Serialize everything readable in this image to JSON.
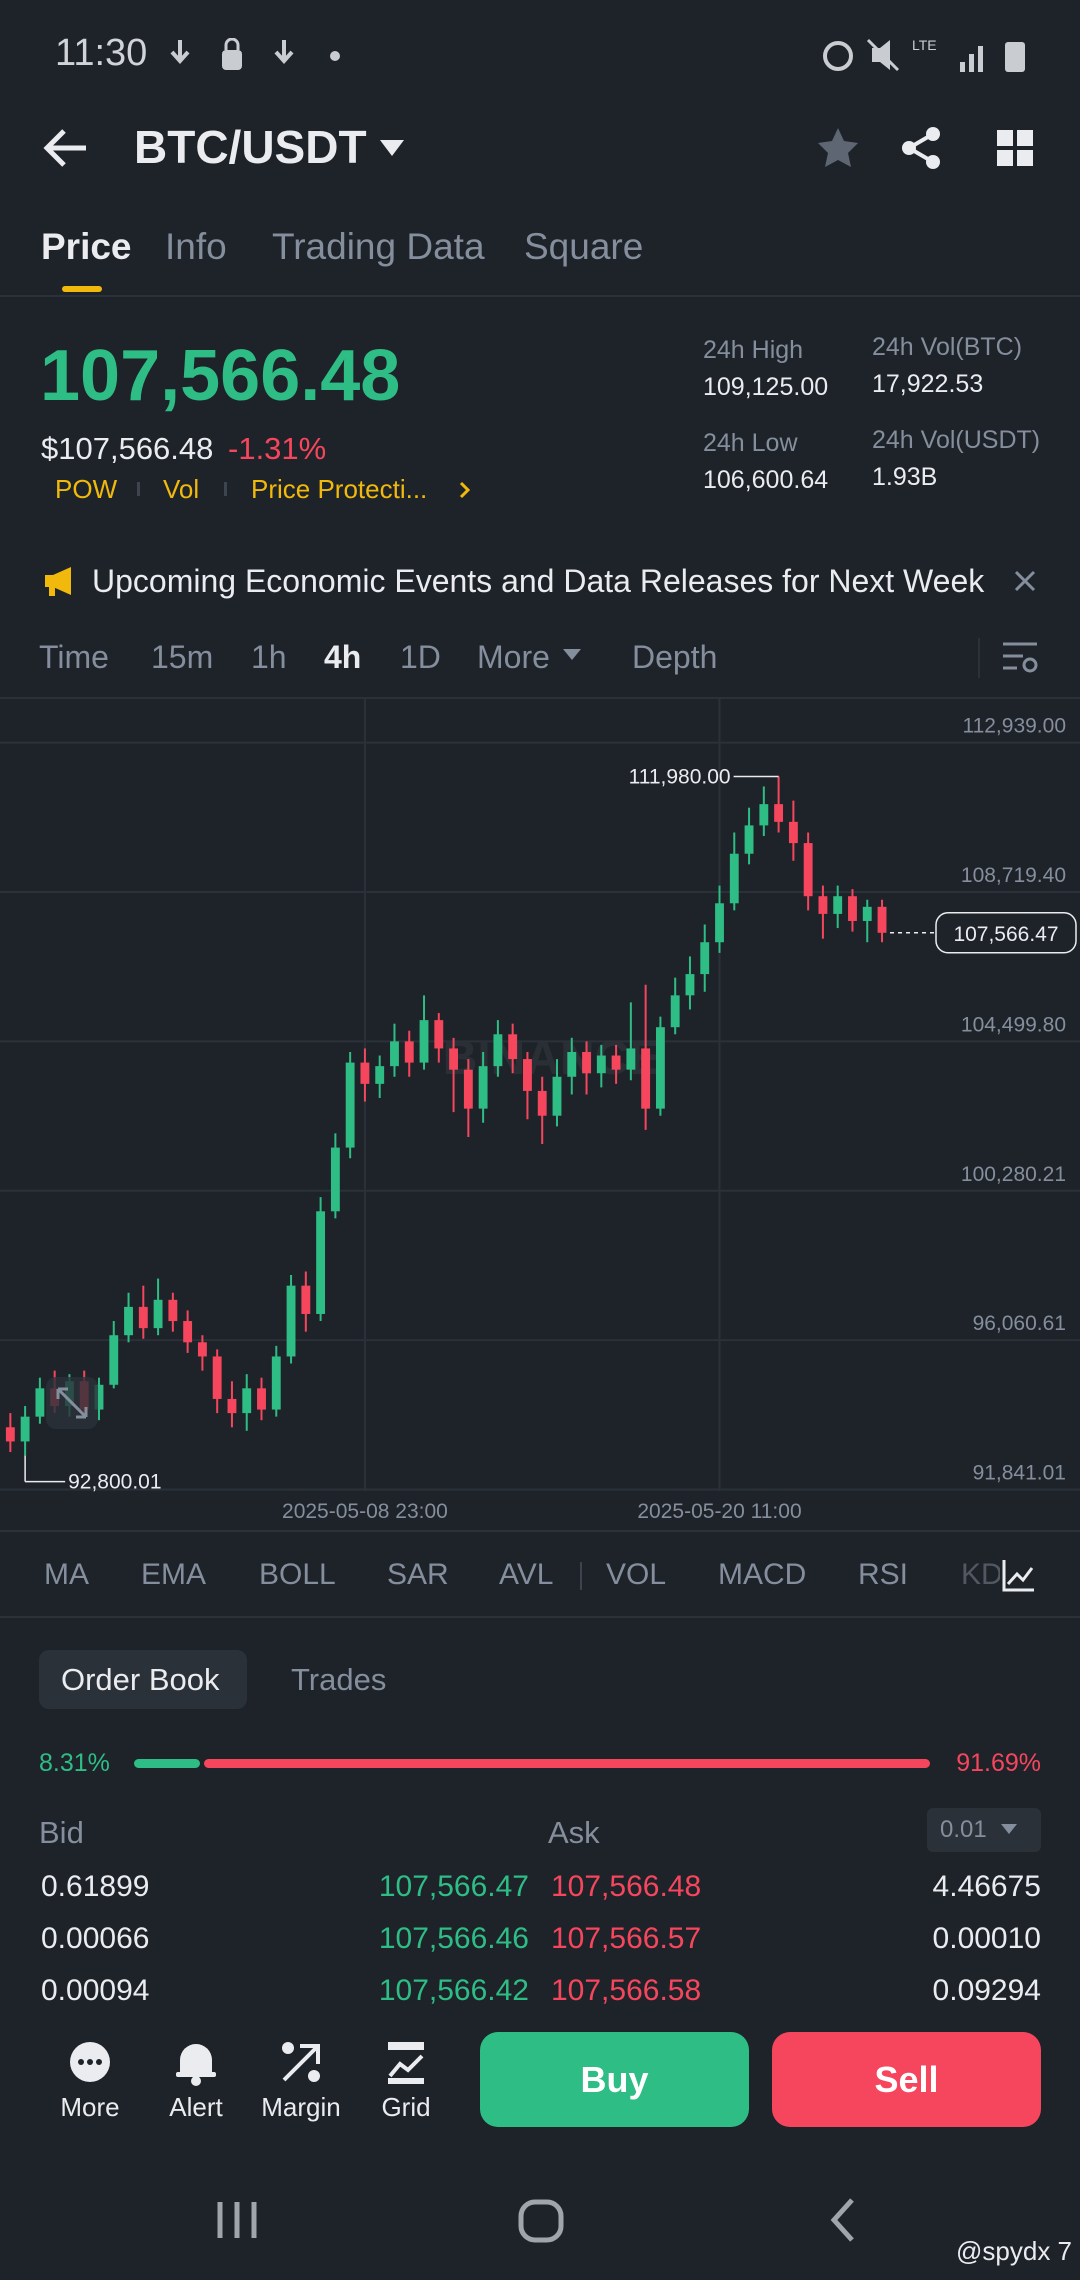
{
  "status_bar": {
    "time": "11:30"
  },
  "header": {
    "title": "BTC/USDT"
  },
  "tabs": [
    "Price",
    "Info",
    "Trading Data",
    "Square"
  ],
  "ticker": {
    "price": "107,566.48",
    "fiat_price": "$107,566.48",
    "change": "-1.31%",
    "tags": [
      "POW",
      "Vol",
      "Price Protecti..."
    ],
    "stats": [
      {
        "label": "24h High",
        "value": "109,125.00"
      },
      {
        "label": "24h Vol(BTC)",
        "value": "17,922.53"
      },
      {
        "label": "24h Low",
        "value": "106,600.64"
      },
      {
        "label": "24h Vol(USDT)",
        "value": "1.93B"
      }
    ]
  },
  "banner": {
    "text": "Upcoming Economic Events and Data Releases for Next Week"
  },
  "intervals": [
    "Time",
    "15m",
    "1h",
    "4h",
    "1D",
    "More",
    "Depth"
  ],
  "chart_data": {
    "type": "candlestick",
    "up_color": "#2ebd85",
    "down_color": "#f6465d",
    "grid": true,
    "watermark": "BINANCE",
    "candles": [
      [
        93600,
        94000,
        92900,
        93200
      ],
      [
        93200,
        94200,
        92800.01,
        93900
      ],
      [
        93900,
        95000,
        93700,
        94700
      ],
      [
        94700,
        95200,
        94000,
        94200
      ],
      [
        94200,
        95100,
        93900,
        94900
      ],
      [
        94900,
        95200,
        93900,
        94100
      ],
      [
        94100,
        95000,
        93800,
        94800
      ],
      [
        94800,
        96600,
        94700,
        96200
      ],
      [
        96200,
        97400,
        96000,
        97000
      ],
      [
        97000,
        97600,
        96100,
        96400
      ],
      [
        96400,
        97800,
        96200,
        97200
      ],
      [
        97200,
        97400,
        96300,
        96600
      ],
      [
        96600,
        96900,
        95700,
        96000
      ],
      [
        96000,
        96200,
        95200,
        95600
      ],
      [
        95600,
        95800,
        94000,
        94400
      ],
      [
        94400,
        94900,
        93600,
        94000
      ],
      [
        94000,
        95100,
        93500,
        94700
      ],
      [
        94700,
        95000,
        93800,
        94100
      ],
      [
        94100,
        95900,
        93900,
        95600
      ],
      [
        95600,
        97900,
        95400,
        97600
      ],
      [
        97600,
        98000,
        96300,
        96800
      ],
      [
        96800,
        100100,
        96600,
        99700
      ],
      [
        99700,
        101900,
        99500,
        101500
      ],
      [
        101500,
        104200,
        101200,
        103900
      ],
      [
        103900,
        104300,
        102800,
        103300
      ],
      [
        103300,
        104100,
        102900,
        103800
      ],
      [
        103800,
        105000,
        103500,
        104500
      ],
      [
        104500,
        104800,
        103500,
        103900
      ],
      [
        103900,
        105800,
        103700,
        105100
      ],
      [
        105100,
        105300,
        103900,
        104300
      ],
      [
        104300,
        104600,
        102500,
        103700
      ],
      [
        103700,
        104000,
        101800,
        102600
      ],
      [
        102600,
        104200,
        102200,
        103800
      ],
      [
        103800,
        105100,
        103500,
        104700
      ],
      [
        104700,
        105000,
        103600,
        104000
      ],
      [
        104000,
        104200,
        102300,
        103100
      ],
      [
        103100,
        103500,
        101600,
        102400
      ],
      [
        102400,
        104000,
        102100,
        103500
      ],
      [
        103500,
        104600,
        103000,
        104200
      ],
      [
        104200,
        104500,
        103000,
        103600
      ],
      [
        103600,
        104400,
        103200,
        104100
      ],
      [
        104100,
        104400,
        103300,
        103700
      ],
      [
        103700,
        105600,
        103400,
        104300
      ],
      [
        104300,
        106100,
        102000,
        102600
      ],
      [
        102600,
        105200,
        102400,
        104900
      ],
      [
        104900,
        106300,
        104700,
        105800
      ],
      [
        105800,
        106900,
        105400,
        106400
      ],
      [
        106400,
        107800,
        105900,
        107300
      ],
      [
        107300,
        108900,
        107000,
        108400
      ],
      [
        108400,
        110400,
        108200,
        109800
      ],
      [
        109800,
        111100,
        109500,
        110600
      ],
      [
        110600,
        111700,
        110300,
        111200
      ],
      [
        111200,
        111980,
        110400,
        110700
      ],
      [
        110700,
        111300,
        109600,
        110100
      ],
      [
        110100,
        110400,
        108200,
        108600
      ],
      [
        108600,
        108900,
        107400,
        108100
      ],
      [
        108100,
        108900,
        107700,
        108600
      ],
      [
        108600,
        108800,
        107600,
        107900
      ],
      [
        107900,
        108500,
        107300,
        108300
      ],
      [
        108300,
        108500,
        107300,
        107566.47
      ]
    ],
    "ylim": [
      91800,
      114170
    ],
    "yticks": [
      {
        "value": 112939,
        "label": "112,939.00"
      },
      {
        "value": 108719.4,
        "label": "108,719.40"
      },
      {
        "value": 104499.8,
        "label": "104,499.80"
      },
      {
        "value": 100280.21,
        "label": "100,280.21"
      },
      {
        "value": 96060.61,
        "label": "96,060.61"
      },
      {
        "value": 91841.01,
        "label": "91,841.01"
      }
    ],
    "xlim": [
      -0.7,
      72.4
    ],
    "xticks": [
      {
        "value": 24,
        "label": "2025-05-08 23:00"
      },
      {
        "value": 48,
        "label": "2025-05-20 11:00"
      }
    ],
    "annotations": [
      {
        "value": 111980,
        "label": "111,980.00"
      },
      {
        "value": 92800.01,
        "label": "92,800.01"
      }
    ],
    "last_price": {
      "value": 107566.47,
      "label": "107,566.47"
    }
  },
  "indicators": [
    "MA",
    "EMA",
    "BOLL",
    "SAR",
    "AVL",
    "VOL",
    "MACD",
    "RSI",
    "KD"
  ],
  "order_book": {
    "tabs": [
      "Order Book",
      "Trades"
    ],
    "bid_ratio": {
      "value": 8.31,
      "label": "8.31%"
    },
    "ask_ratio": {
      "value": 91.69,
      "label": "91.69%"
    },
    "bid_header": "Bid",
    "ask_header": "Ask",
    "precision": "0.01",
    "rows": [
      [
        "0.61899",
        "107,566.47",
        "107,566.48",
        "4.46675"
      ],
      [
        "0.00066",
        "107,566.46",
        "107,566.57",
        "0.00010"
      ],
      [
        "0.00094",
        "107,566.42",
        "107,566.58",
        "0.09294"
      ]
    ]
  },
  "actions": [
    "More",
    "Alert",
    "Margin",
    "Grid"
  ],
  "buy": "Buy",
  "sell": "Sell",
  "watermark": "@spydx 7"
}
